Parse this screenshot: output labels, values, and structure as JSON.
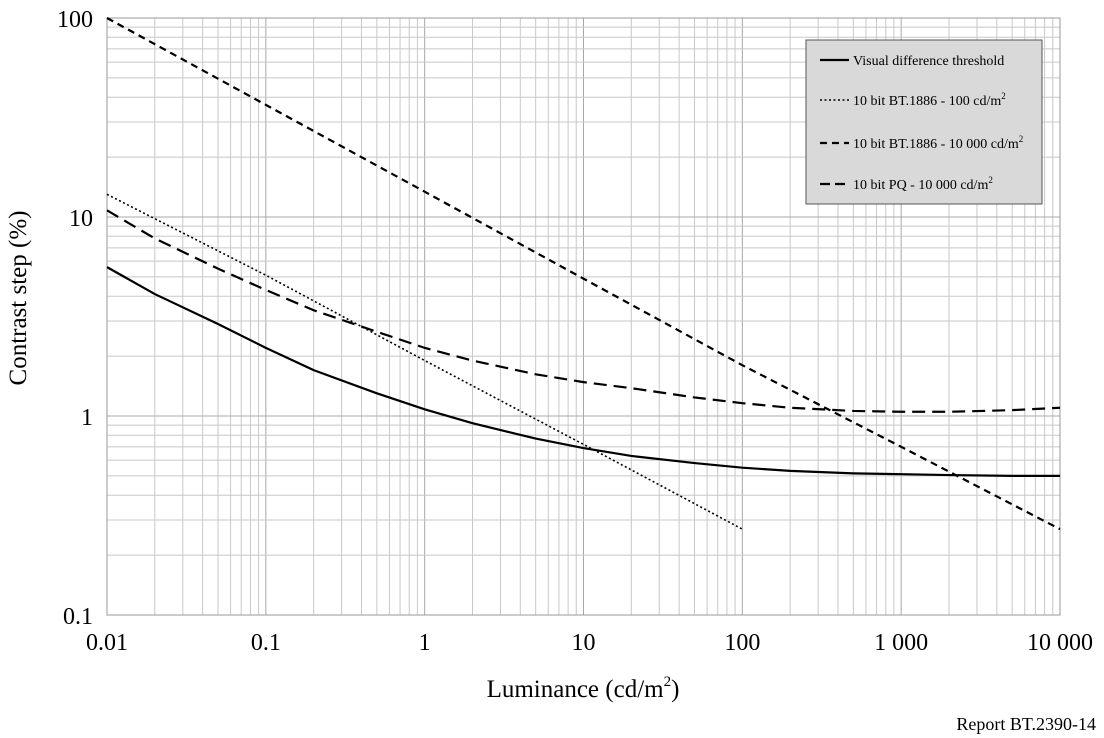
{
  "chart_data": {
    "type": "line",
    "xlabel": "Luminance (cd/m",
    "xlabel_sup": "2",
    "xlabel_close": ")",
    "ylabel": "Contrast step (%)",
    "x_scale": "log",
    "y_scale": "log",
    "xlim": [
      0.01,
      10000
    ],
    "ylim": [
      0.1,
      100
    ],
    "x_ticks": [
      {
        "value": 0.01,
        "label": "0.01"
      },
      {
        "value": 0.1,
        "label": "0.1"
      },
      {
        "value": 1,
        "label": "1"
      },
      {
        "value": 10,
        "label": "10"
      },
      {
        "value": 100,
        "label": "100"
      },
      {
        "value": 1000,
        "label": "1 000"
      },
      {
        "value": 10000,
        "label": "10 000"
      }
    ],
    "y_ticks": [
      {
        "value": 0.1,
        "label": "0.1"
      },
      {
        "value": 1,
        "label": "1"
      },
      {
        "value": 10,
        "label": "10"
      },
      {
        "value": 100,
        "label": "100"
      }
    ],
    "grid": true,
    "legend_position": "top-right",
    "series": [
      {
        "name": "Visual difference threshold",
        "name_sup": "",
        "style": "solid",
        "x": [
          0.01,
          0.02,
          0.05,
          0.1,
          0.2,
          0.5,
          1,
          2,
          5,
          10,
          20,
          50,
          100,
          200,
          500,
          1000,
          2000,
          5000,
          10000
        ],
        "y": [
          5.6,
          4.1,
          2.9,
          2.2,
          1.7,
          1.3,
          1.08,
          0.92,
          0.77,
          0.69,
          0.63,
          0.58,
          0.55,
          0.53,
          0.515,
          0.51,
          0.505,
          0.5,
          0.5
        ]
      },
      {
        "name": "10 bit BT.1886 - 100 cd/m",
        "name_sup": "2",
        "style": "dotted",
        "x": [
          0.01,
          0.1,
          1,
          10,
          100
        ],
        "y": [
          13,
          5.1,
          1.9,
          0.72,
          0.27
        ]
      },
      {
        "name": "10 bit BT.1886 - 10 000 cd/m",
        "name_sup": "2",
        "style": "dashed",
        "x": [
          0.01,
          0.1,
          1,
          10,
          100,
          1000,
          10000
        ],
        "y": [
          100,
          36.6,
          13.4,
          4.9,
          1.8,
          0.7,
          0.27
        ]
      },
      {
        "name": "10 bit PQ - 10 000 cd/m",
        "name_sup": "2",
        "style": "longdash",
        "x": [
          0.01,
          0.02,
          0.05,
          0.1,
          0.2,
          0.5,
          1,
          2,
          5,
          10,
          20,
          50,
          100,
          200,
          500,
          1000,
          2000,
          5000,
          10000
        ],
        "y": [
          10.8,
          7.8,
          5.5,
          4.3,
          3.4,
          2.65,
          2.2,
          1.9,
          1.62,
          1.48,
          1.38,
          1.24,
          1.16,
          1.1,
          1.06,
          1.05,
          1.05,
          1.07,
          1.1
        ]
      }
    ]
  },
  "footer": {
    "label": "Report BT.2390-14"
  }
}
